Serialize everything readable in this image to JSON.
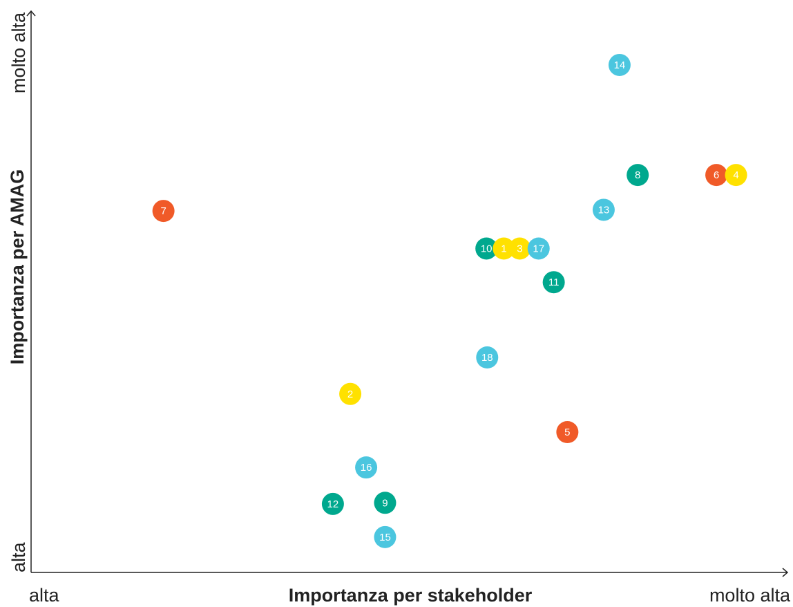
{
  "chart_data": {
    "type": "scatter",
    "title": "",
    "xlabel": "Importanza per stakeholder",
    "ylabel": "Importanza per AMAG",
    "x_tick_labels": {
      "low": "alta",
      "high": "molto alta"
    },
    "y_tick_labels": {
      "low": "alta",
      "high": "molto alta"
    },
    "xlim": [
      0,
      100
    ],
    "ylim": [
      0,
      100
    ],
    "grid": false,
    "colors": {
      "orange": "#f05a28",
      "yellow": "#ffe100",
      "green": "#00a88e",
      "blue": "#4bc6df"
    },
    "points": [
      {
        "label": "7",
        "x": 17.5,
        "y": 64.4,
        "color": "orange"
      },
      {
        "label": "14",
        "x": 77.8,
        "y": 90.4,
        "color": "blue"
      },
      {
        "label": "8",
        "x": 80.2,
        "y": 70.8,
        "color": "green"
      },
      {
        "label": "6",
        "x": 90.6,
        "y": 70.8,
        "color": "orange"
      },
      {
        "label": "4",
        "x": 93.2,
        "y": 70.8,
        "color": "yellow"
      },
      {
        "label": "13",
        "x": 75.7,
        "y": 64.6,
        "color": "blue"
      },
      {
        "label": "10",
        "x": 60.2,
        "y": 57.7,
        "color": "green"
      },
      {
        "label": "1",
        "x": 62.5,
        "y": 57.7,
        "color": "yellow"
      },
      {
        "label": "3",
        "x": 64.6,
        "y": 57.7,
        "color": "yellow"
      },
      {
        "label": "17",
        "x": 67.1,
        "y": 57.7,
        "color": "blue"
      },
      {
        "label": "11",
        "x": 69.1,
        "y": 51.7,
        "color": "green"
      },
      {
        "label": "18",
        "x": 60.3,
        "y": 38.3,
        "color": "blue"
      },
      {
        "label": "2",
        "x": 42.2,
        "y": 31.8,
        "color": "yellow"
      },
      {
        "label": "5",
        "x": 70.9,
        "y": 25.0,
        "color": "orange"
      },
      {
        "label": "16",
        "x": 44.3,
        "y": 18.7,
        "color": "blue"
      },
      {
        "label": "12",
        "x": 39.9,
        "y": 12.2,
        "color": "green"
      },
      {
        "label": "9",
        "x": 46.8,
        "y": 12.4,
        "color": "green"
      },
      {
        "label": "15",
        "x": 46.8,
        "y": 6.3,
        "color": "blue"
      }
    ]
  }
}
